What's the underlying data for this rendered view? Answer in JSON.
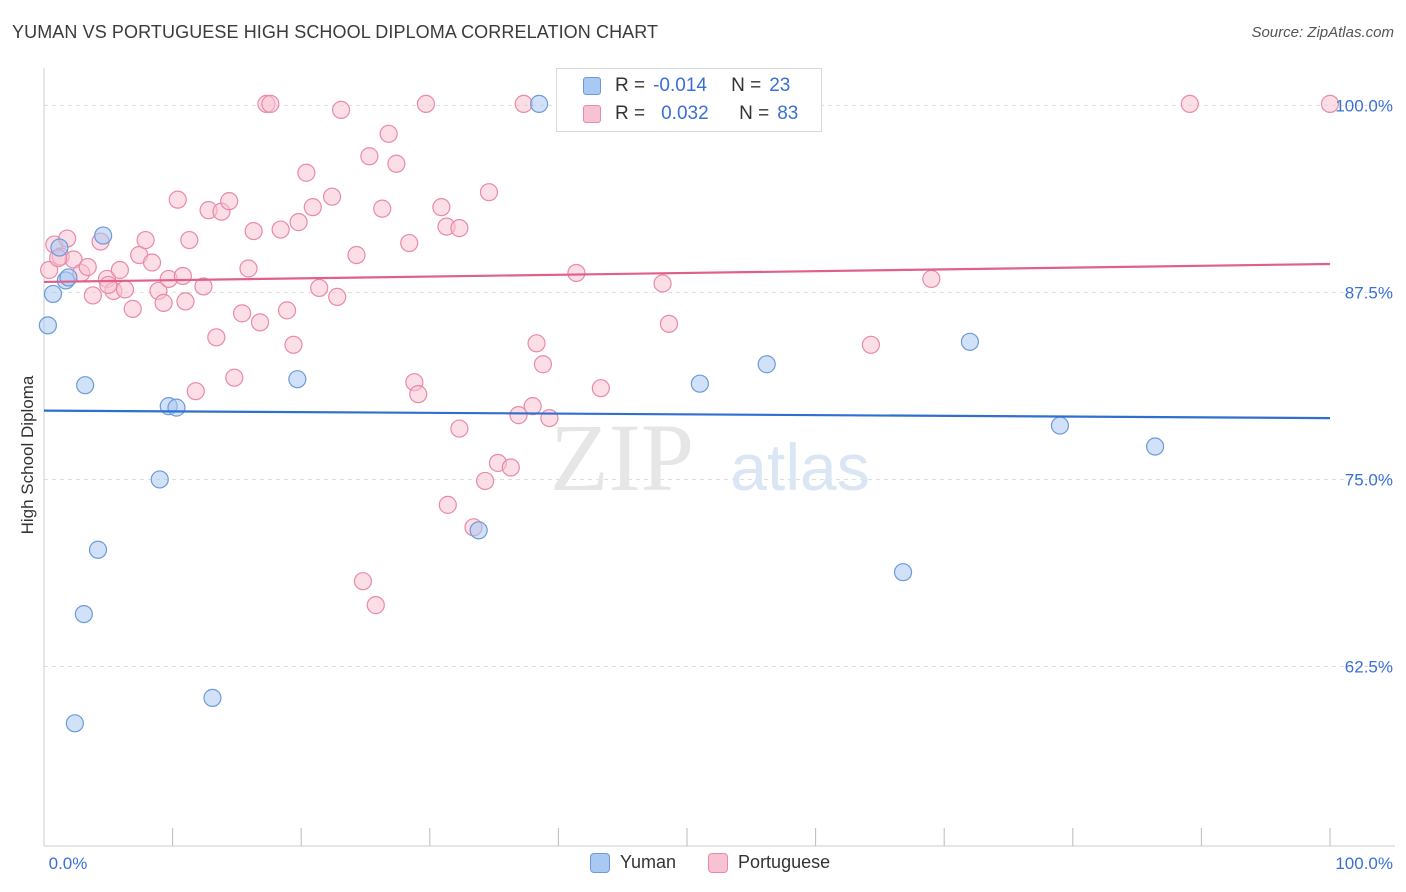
{
  "title": "YUMAN VS PORTUGUESE HIGH SCHOOL DIPLOMA CORRELATION CHART",
  "source": "Source: ZipAtlas.com",
  "colors": {
    "yuman_fill": "#a9c8f2",
    "yuman_stroke": "#6e9ad8",
    "yuman_line": "#2f6fcf",
    "portuguese_fill": "#f7c2d2",
    "portuguese_stroke": "#e98aa8",
    "portuguese_line": "#e0608a",
    "tick_label": "#3a6fd8",
    "grid": "#dddddd"
  },
  "legend": {
    "rows": [
      {
        "r_label": "R =",
        "r_value": "-0.014",
        "n_label": "N =",
        "n_value": "23"
      },
      {
        "r_label": "R =",
        "r_value": "0.032",
        "n_label": "N =",
        "n_value": "83"
      }
    ]
  },
  "bottom_legend": {
    "yuman": "Yuman",
    "portuguese": "Portuguese"
  },
  "watermark": {
    "zip": "ZIP",
    "atlas": "atlas"
  },
  "chart_data": {
    "type": "scatter",
    "title": "YUMAN VS PORTUGUESE HIGH SCHOOL DIPLOMA CORRELATION CHART",
    "xlabel": "",
    "ylabel": "High School Diploma",
    "xlim": [
      0,
      100
    ],
    "ylim": [
      50.5,
      102.5
    ],
    "x_tick_labels": [
      "0.0%",
      "100.0%"
    ],
    "y_ticks": [
      62.5,
      75.0,
      87.5,
      100.0
    ],
    "y_tick_labels": [
      "62.5%",
      "75.0%",
      "87.5%",
      "100.0%"
    ],
    "series": [
      {
        "name": "Yuman",
        "R": -0.014,
        "N": 23,
        "trend": {
          "x": [
            0,
            100
          ],
          "y": [
            79.6,
            79.1
          ]
        },
        "points": [
          {
            "x": 0.3,
            "y": 85.3
          },
          {
            "x": 0.7,
            "y": 87.4
          },
          {
            "x": 1.2,
            "y": 90.5
          },
          {
            "x": 1.7,
            "y": 88.3
          },
          {
            "x": 1.9,
            "y": 88.5
          },
          {
            "x": 2.4,
            "y": 58.7
          },
          {
            "x": 3.1,
            "y": 66.0
          },
          {
            "x": 3.2,
            "y": 81.3
          },
          {
            "x": 4.2,
            "y": 70.3
          },
          {
            "x": 4.6,
            "y": 91.3
          },
          {
            "x": 9.0,
            "y": 75.0
          },
          {
            "x": 9.7,
            "y": 79.9
          },
          {
            "x": 10.3,
            "y": 79.8
          },
          {
            "x": 13.1,
            "y": 60.4
          },
          {
            "x": 19.7,
            "y": 81.7
          },
          {
            "x": 33.8,
            "y": 71.6
          },
          {
            "x": 38.5,
            "y": 100.1
          },
          {
            "x": 51.0,
            "y": 81.4
          },
          {
            "x": 56.2,
            "y": 82.7
          },
          {
            "x": 66.8,
            "y": 68.8
          },
          {
            "x": 72.0,
            "y": 84.2
          },
          {
            "x": 79.0,
            "y": 78.6
          },
          {
            "x": 86.4,
            "y": 77.2
          }
        ]
      },
      {
        "name": "Portuguese",
        "R": 0.032,
        "N": 83,
        "trend": {
          "x": [
            0,
            100
          ],
          "y": [
            88.2,
            89.4
          ]
        },
        "points": [
          {
            "x": 0.4,
            "y": 89.0
          },
          {
            "x": 0.8,
            "y": 90.7
          },
          {
            "x": 1.3,
            "y": 89.9
          },
          {
            "x": 1.8,
            "y": 91.1
          },
          {
            "x": 2.3,
            "y": 89.7
          },
          {
            "x": 2.9,
            "y": 88.8
          },
          {
            "x": 3.4,
            "y": 89.2
          },
          {
            "x": 3.8,
            "y": 87.3
          },
          {
            "x": 4.4,
            "y": 90.9
          },
          {
            "x": 4.9,
            "y": 88.4
          },
          {
            "x": 5.4,
            "y": 87.6
          },
          {
            "x": 5.9,
            "y": 89.0
          },
          {
            "x": 6.3,
            "y": 87.7
          },
          {
            "x": 6.9,
            "y": 86.4
          },
          {
            "x": 7.4,
            "y": 90.0
          },
          {
            "x": 7.9,
            "y": 91.0
          },
          {
            "x": 8.4,
            "y": 89.5
          },
          {
            "x": 8.9,
            "y": 87.6
          },
          {
            "x": 9.3,
            "y": 86.8
          },
          {
            "x": 9.7,
            "y": 88.4
          },
          {
            "x": 10.4,
            "y": 93.7
          },
          {
            "x": 10.8,
            "y": 88.6
          },
          {
            "x": 11.3,
            "y": 91.0
          },
          {
            "x": 11.8,
            "y": 80.9
          },
          {
            "x": 12.4,
            "y": 87.9
          },
          {
            "x": 12.8,
            "y": 93.0
          },
          {
            "x": 13.4,
            "y": 84.5
          },
          {
            "x": 13.8,
            "y": 92.9
          },
          {
            "x": 14.4,
            "y": 93.6
          },
          {
            "x": 14.8,
            "y": 81.8
          },
          {
            "x": 15.4,
            "y": 86.1
          },
          {
            "x": 15.9,
            "y": 89.1
          },
          {
            "x": 16.3,
            "y": 91.6
          },
          {
            "x": 16.8,
            "y": 85.5
          },
          {
            "x": 17.3,
            "y": 100.1
          },
          {
            "x": 17.6,
            "y": 100.1
          },
          {
            "x": 18.4,
            "y": 91.7
          },
          {
            "x": 18.9,
            "y": 86.3
          },
          {
            "x": 19.4,
            "y": 84.0
          },
          {
            "x": 19.8,
            "y": 92.2
          },
          {
            "x": 20.4,
            "y": 95.5
          },
          {
            "x": 20.9,
            "y": 93.2
          },
          {
            "x": 21.4,
            "y": 87.8
          },
          {
            "x": 22.4,
            "y": 93.9
          },
          {
            "x": 22.8,
            "y": 87.2
          },
          {
            "x": 23.1,
            "y": 99.7
          },
          {
            "x": 24.3,
            "y": 90.0
          },
          {
            "x": 24.8,
            "y": 68.2
          },
          {
            "x": 25.3,
            "y": 96.6
          },
          {
            "x": 25.8,
            "y": 66.6
          },
          {
            "x": 26.3,
            "y": 93.1
          },
          {
            "x": 26.8,
            "y": 98.1
          },
          {
            "x": 27.4,
            "y": 96.1
          },
          {
            "x": 28.4,
            "y": 90.8
          },
          {
            "x": 28.8,
            "y": 81.5
          },
          {
            "x": 29.1,
            "y": 80.7
          },
          {
            "x": 29.7,
            "y": 100.1
          },
          {
            "x": 30.9,
            "y": 93.2
          },
          {
            "x": 31.4,
            "y": 73.3
          },
          {
            "x": 31.3,
            "y": 91.9
          },
          {
            "x": 32.3,
            "y": 91.8
          },
          {
            "x": 32.3,
            "y": 78.4
          },
          {
            "x": 33.4,
            "y": 71.8
          },
          {
            "x": 34.3,
            "y": 74.9
          },
          {
            "x": 34.6,
            "y": 94.2
          },
          {
            "x": 35.3,
            "y": 76.1
          },
          {
            "x": 36.3,
            "y": 75.8
          },
          {
            "x": 36.9,
            "y": 79.3
          },
          {
            "x": 37.3,
            "y": 100.1
          },
          {
            "x": 38.0,
            "y": 79.9
          },
          {
            "x": 38.3,
            "y": 84.1
          },
          {
            "x": 38.8,
            "y": 82.7
          },
          {
            "x": 39.3,
            "y": 79.1
          },
          {
            "x": 41.4,
            "y": 88.8
          },
          {
            "x": 43.3,
            "y": 81.1
          },
          {
            "x": 48.1,
            "y": 88.1
          },
          {
            "x": 48.6,
            "y": 85.4
          },
          {
            "x": 64.3,
            "y": 84.0
          },
          {
            "x": 69.0,
            "y": 88.4
          },
          {
            "x": 89.1,
            "y": 100.1
          },
          {
            "x": 100.0,
            "y": 100.1
          },
          {
            "x": 1.1,
            "y": 89.8
          },
          {
            "x": 5.0,
            "y": 88.0
          },
          {
            "x": 11.0,
            "y": 86.9
          }
        ]
      }
    ]
  }
}
